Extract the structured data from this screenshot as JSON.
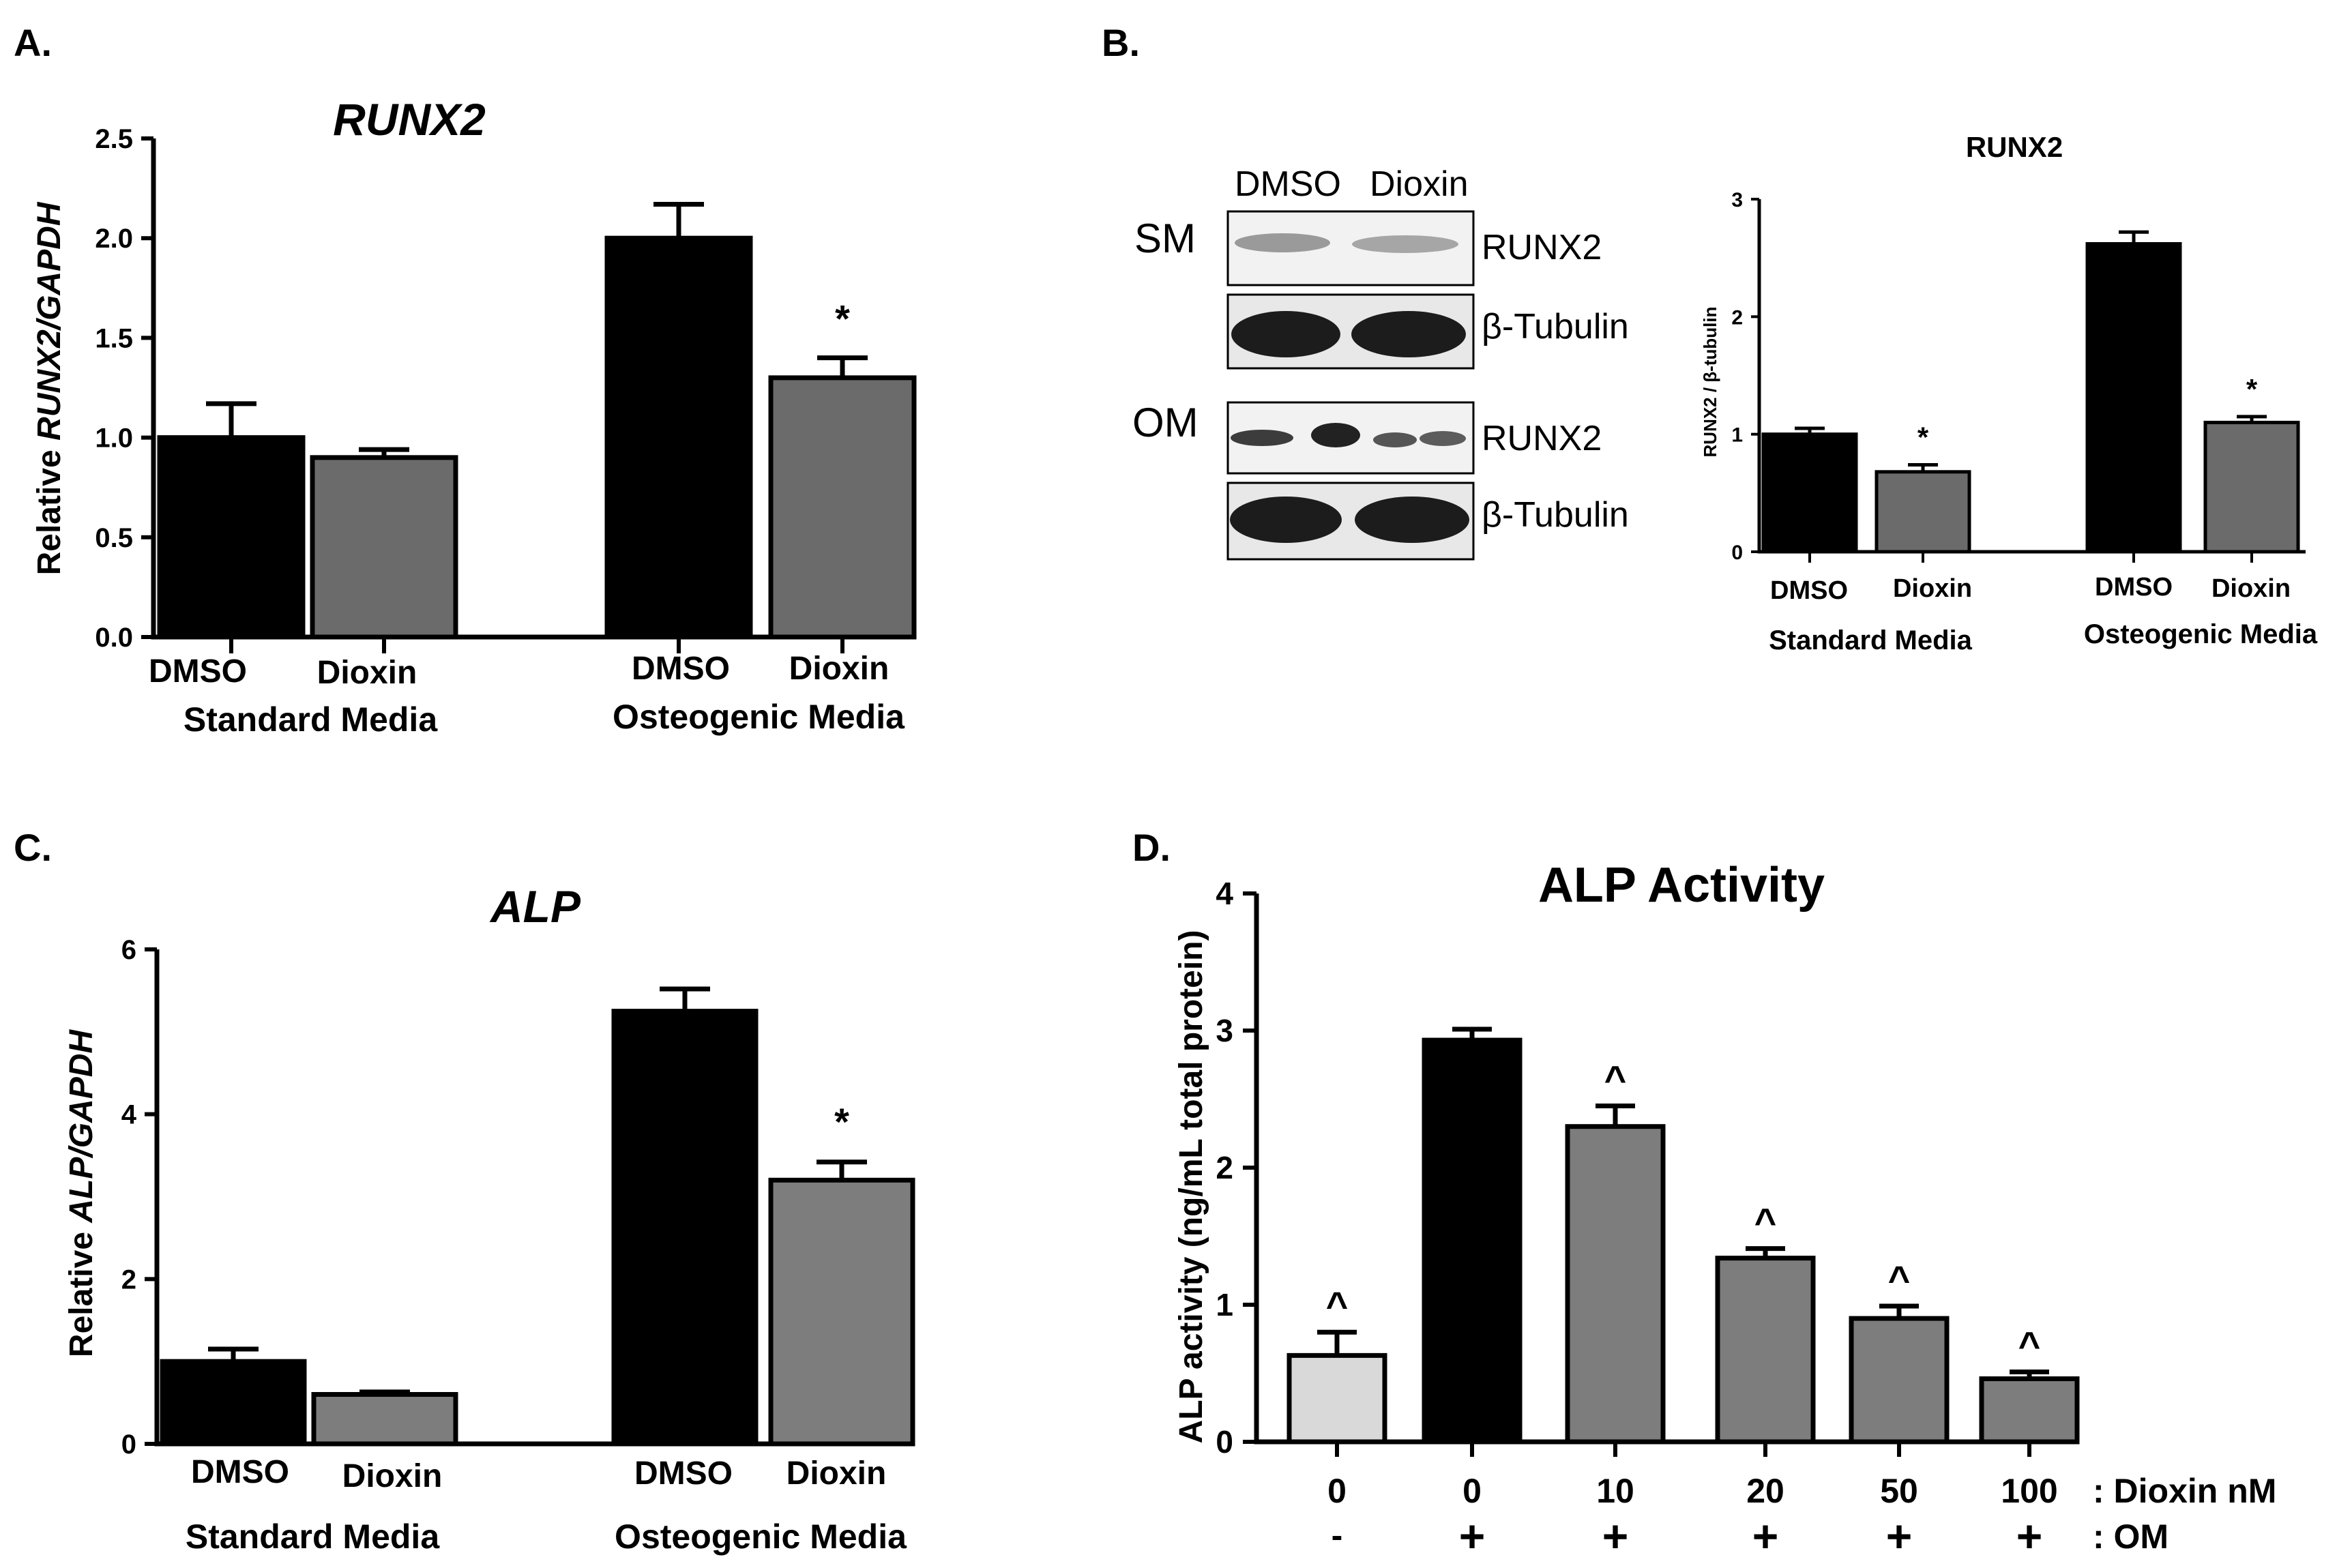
{
  "panels": [
    {
      "id": "A",
      "letter": "A.",
      "chart_data": {
        "type": "bar",
        "title": "RUNX2",
        "ylabel": "Relative RUNX2/GAPDH",
        "ylim": [
          0,
          2.5
        ],
        "yticks": [
          "0.0",
          "0.5",
          "1.0",
          "1.5",
          "2.0",
          "2.5"
        ],
        "groups": [
          "Standard Media",
          "Osteogenic Media"
        ],
        "categories": [
          "DMSO",
          "Dioxin",
          "DMSO",
          "Dioxin"
        ],
        "values": [
          1.0,
          0.9,
          2.0,
          1.3
        ],
        "errors": [
          0.17,
          0.04,
          0.17,
          0.1
        ],
        "significance": [
          "",
          "",
          "",
          "*"
        ],
        "colors": [
          "#000000",
          "#6b6b6b",
          "#000000",
          "#6b6b6b"
        ]
      }
    },
    {
      "id": "B",
      "letter": "B.",
      "blot": {
        "columns": [
          "DMSO",
          "Dioxin"
        ],
        "rows": [
          {
            "condition": "SM",
            "band": "RUNX2"
          },
          {
            "condition": "",
            "band": "β-Tubulin"
          },
          {
            "condition": "OM",
            "band": "RUNX2"
          },
          {
            "condition": "",
            "band": "β-Tubulin"
          }
        ]
      },
      "chart_data": {
        "type": "bar",
        "title": "RUNX2",
        "ylabel": "RUNX2 / β-tubulin",
        "ylim": [
          0,
          3
        ],
        "yticks": [
          "0",
          "1",
          "2",
          "3"
        ],
        "groups": [
          "Standard Media",
          "Osteogenic Media"
        ],
        "categories": [
          "DMSO",
          "Dioxin",
          "DMSO",
          "Dioxin"
        ],
        "values": [
          1.0,
          0.68,
          2.62,
          1.1
        ],
        "errors": [
          0.05,
          0.06,
          0.1,
          0.05
        ],
        "significance": [
          "",
          "*",
          "",
          "*"
        ],
        "colors": [
          "#000000",
          "#6b6b6b",
          "#000000",
          "#6b6b6b"
        ]
      }
    },
    {
      "id": "C",
      "letter": "C.",
      "chart_data": {
        "type": "bar",
        "title": "ALP",
        "ylabel": "Relative ALP/GAPDH",
        "ylim": [
          0,
          6
        ],
        "yticks": [
          "0",
          "2",
          "4",
          "6"
        ],
        "groups": [
          "Standard Media",
          "Osteogenic Media"
        ],
        "categories": [
          "DMSO",
          "Dioxin",
          "DMSO",
          "Dioxin"
        ],
        "values": [
          1.0,
          0.6,
          5.25,
          3.2
        ],
        "errors": [
          0.15,
          0.03,
          0.27,
          0.22
        ],
        "significance": [
          "",
          "",
          "",
          "*"
        ],
        "colors": [
          "#000000",
          "#7d7d7d",
          "#000000",
          "#7d7d7d"
        ]
      }
    },
    {
      "id": "D",
      "letter": "D.",
      "chart_data": {
        "type": "bar",
        "title": "ALP Activity",
        "ylabel": "ALP activity (ng/mL total protein)",
        "ylim": [
          0,
          4
        ],
        "yticks": [
          "0",
          "1",
          "2",
          "3",
          "4"
        ],
        "dioxin_row_label": ": Dioxin nM",
        "om_row_label": ": OM",
        "categories": [
          "0",
          "0",
          "10",
          "20",
          "50",
          "100"
        ],
        "om": [
          "-",
          "+",
          "+",
          "+",
          "+",
          "+"
        ],
        "values": [
          0.63,
          2.93,
          2.3,
          1.34,
          0.9,
          0.46
        ],
        "errors": [
          0.17,
          0.08,
          0.15,
          0.07,
          0.09,
          0.05
        ],
        "significance": [
          "^",
          "",
          "^",
          "^",
          "^",
          "^"
        ],
        "colors": [
          "#d9d9d9",
          "#000000",
          "#7d7d7d",
          "#7d7d7d",
          "#7d7d7d",
          "#7d7d7d"
        ]
      }
    }
  ]
}
